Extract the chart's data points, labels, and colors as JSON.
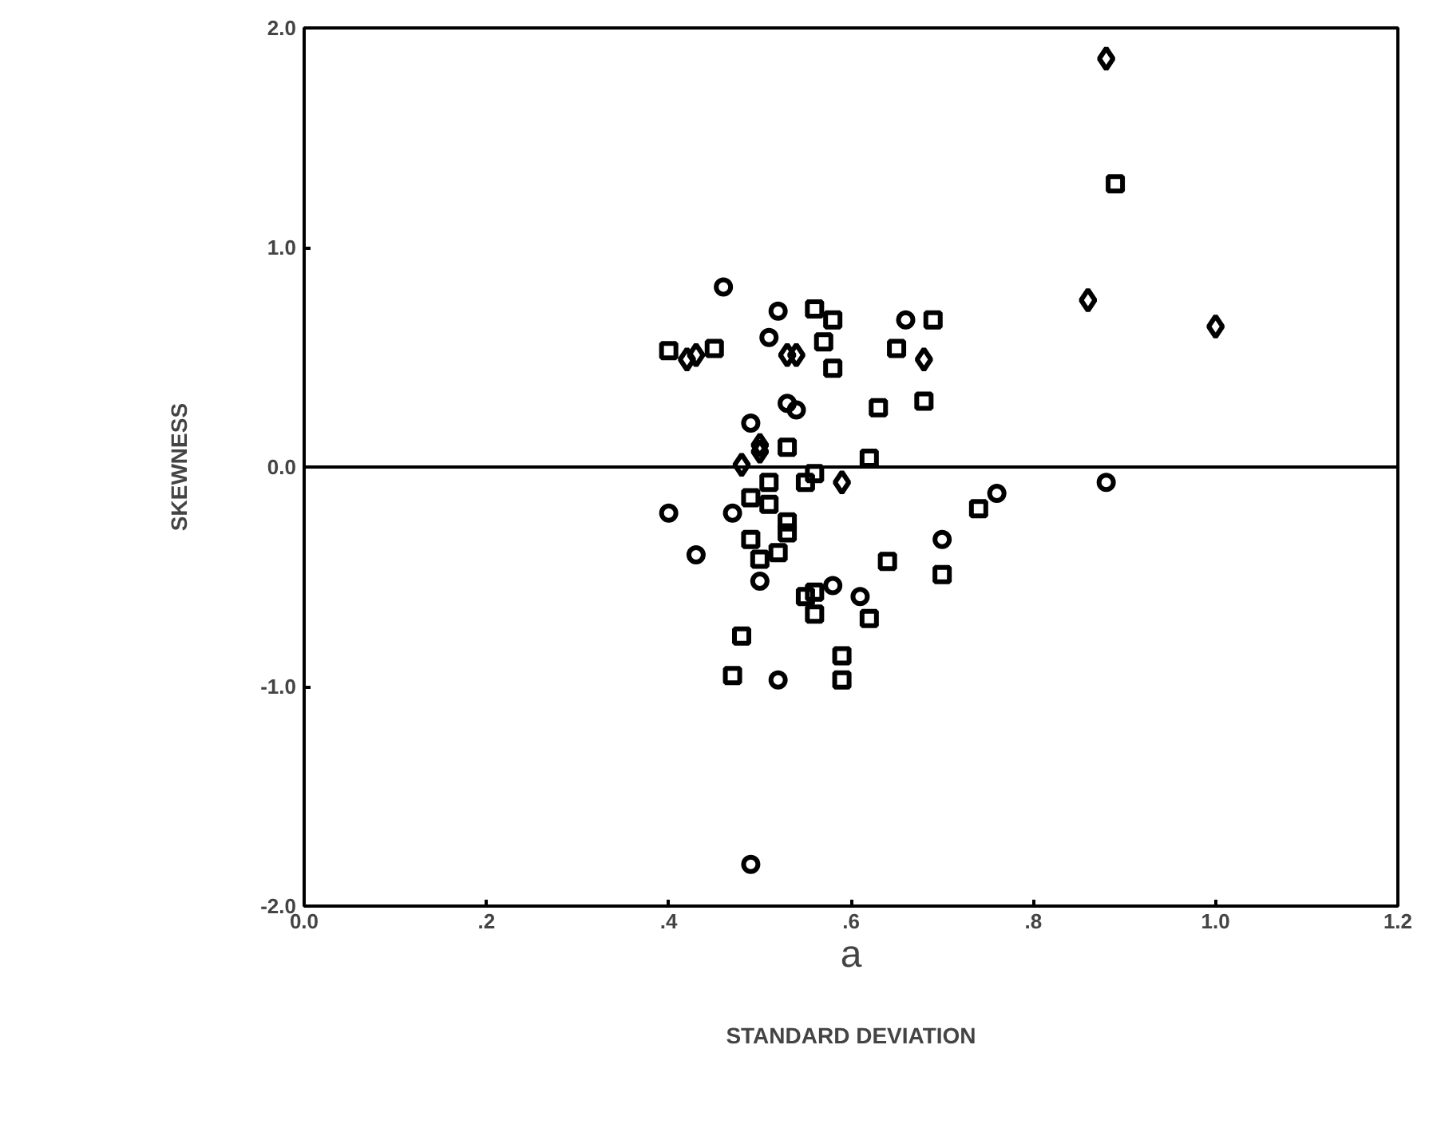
{
  "chart_data": {
    "type": "scatter",
    "xlabel": "STANDARD DEVIATION",
    "ylabel": "SKEWNESS",
    "annotations": [
      "a"
    ],
    "xlim": [
      0,
      1.2
    ],
    "ylim": [
      -2,
      2
    ],
    "xticks": [
      {
        "value": 0,
        "label": "0.0"
      },
      {
        "value": 0.2,
        "label": ".2"
      },
      {
        "value": 0.4,
        "label": ".4"
      },
      {
        "value": 0.6,
        "label": ".6"
      },
      {
        "value": 0.8,
        "label": ".8"
      },
      {
        "value": 1.0,
        "label": "1.0"
      },
      {
        "value": 1.2,
        "label": "1.2"
      }
    ],
    "yticks": [
      {
        "value": -2,
        "label": "-2.0"
      },
      {
        "value": -1,
        "label": "-1.0"
      },
      {
        "value": 0,
        "label": "0.0"
      },
      {
        "value": 1,
        "label": "1.0"
      },
      {
        "value": 2,
        "label": "2.0"
      }
    ],
    "grid": false,
    "ref_lines": [
      {
        "axis": "y",
        "value": 0,
        "label": null,
        "color": "#000000"
      }
    ],
    "series": [
      {
        "color": "#000000",
        "marker": "square",
        "x": [
          0.4,
          0.45,
          0.56,
          0.58,
          0.57,
          0.58,
          0.69,
          0.65,
          0.63,
          0.68,
          0.53,
          0.62,
          0.89,
          0.51,
          0.55,
          0.56,
          0.49,
          0.51,
          0.53,
          0.53,
          0.49,
          0.5,
          0.52,
          0.64,
          0.7,
          0.74,
          0.55,
          0.56,
          0.56,
          0.62,
          0.48,
          0.59,
          0.47,
          0.59
        ],
        "values": [
          0.53,
          0.54,
          0.72,
          0.67,
          0.57,
          0.45,
          0.67,
          0.54,
          0.27,
          0.3,
          0.09,
          0.04,
          1.29,
          -0.07,
          -0.07,
          -0.03,
          -0.14,
          -0.17,
          -0.25,
          -0.3,
          -0.33,
          -0.42,
          -0.39,
          -0.43,
          -0.49,
          -0.19,
          -0.59,
          -0.57,
          -0.67,
          -0.69,
          -0.77,
          -0.86,
          -0.95,
          -0.97
        ]
      },
      {
        "color": "#000000",
        "marker": "circle",
        "x": [
          0.46,
          0.52,
          0.51,
          0.66,
          0.53,
          0.54,
          0.49,
          0.4,
          0.47,
          0.43,
          0.5,
          0.7,
          0.76,
          0.58,
          0.61,
          0.52,
          0.88,
          0.49
        ],
        "values": [
          0.82,
          0.71,
          0.59,
          0.67,
          0.29,
          0.26,
          0.2,
          -0.21,
          -0.21,
          -0.4,
          -0.52,
          -0.33,
          -0.12,
          -0.54,
          -0.59,
          -0.97,
          -0.07,
          -1.81
        ]
      },
      {
        "color": "#000000",
        "marker": "diamond",
        "x": [
          0.88,
          0.86,
          1.0,
          0.42,
          0.43,
          0.53,
          0.54,
          0.68,
          0.5,
          0.5,
          0.48,
          0.59
        ],
        "values": [
          1.86,
          0.76,
          0.64,
          0.49,
          0.51,
          0.51,
          0.51,
          0.49,
          0.1,
          0.07,
          0.01,
          -0.07
        ]
      }
    ]
  }
}
